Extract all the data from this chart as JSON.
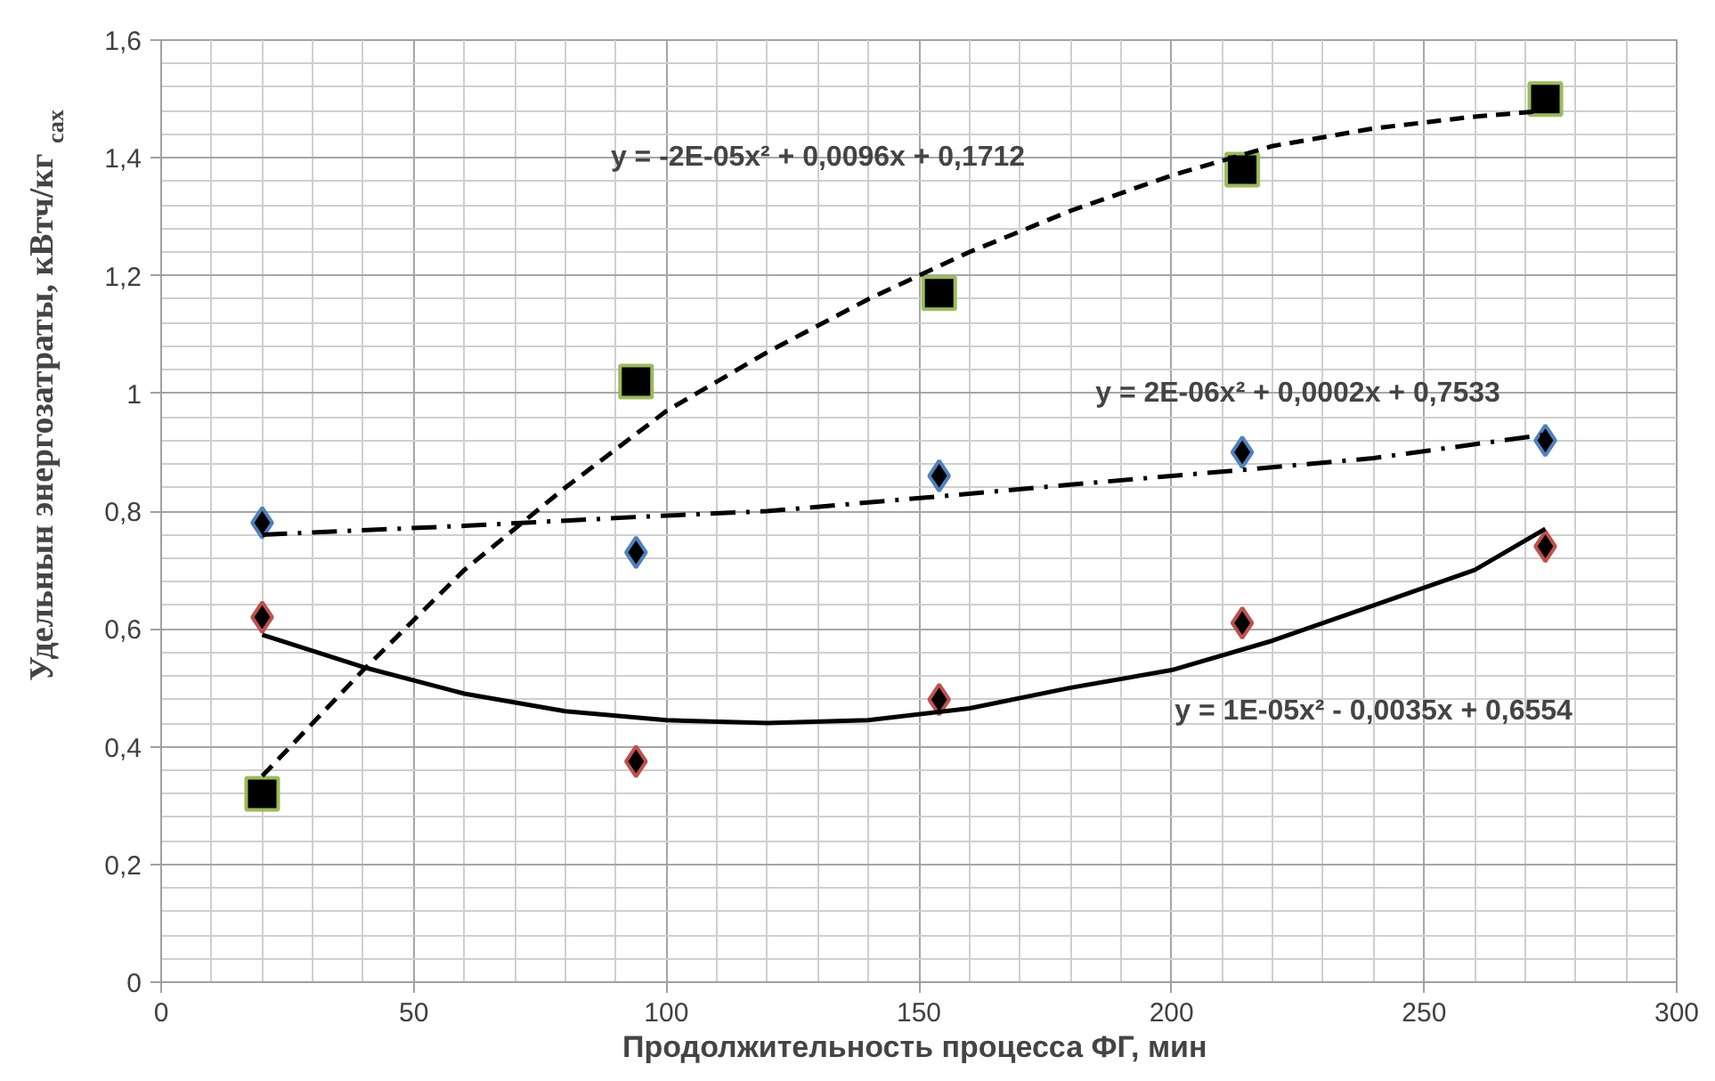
{
  "chart_data": {
    "type": "scatter",
    "xlabel": "Продолжительность  процесса ФГ, мин",
    "ylabel": "Удельнын энергозатраты,  кВтч/кг$_{сах}$",
    "x": [
      20,
      94,
      154,
      214,
      274
    ],
    "series": [
      {
        "marker": "square",
        "color": "#9bbb59",
        "values": [
          0.32,
          1.02,
          1.17,
          1.38,
          1.5
        ]
      },
      {
        "marker": "diamond",
        "color": "#4f81bd",
        "values": [
          0.78,
          0.73,
          0.86,
          0.9,
          0.92
        ]
      },
      {
        "marker": "diamond",
        "color": "#c0504d",
        "values": [
          0.62,
          0.375,
          0.48,
          0.61,
          0.74
        ]
      },
      {
        "type": "line",
        "line_style": "dashed",
        "color": "#000000",
        "x": [
          20,
          40,
          60,
          80,
          100,
          120,
          140,
          160,
          180,
          200,
          220,
          240,
          260,
          274
        ],
        "values": [
          0.35,
          0.53,
          0.7,
          0.84,
          0.97,
          1.07,
          1.16,
          1.24,
          1.31,
          1.37,
          1.42,
          1.45,
          1.47,
          1.48
        ]
      },
      {
        "type": "line",
        "line_style": "dashdot",
        "color": "#000000",
        "x": [
          20,
          60,
          94,
          120,
          154,
          180,
          214,
          240,
          274
        ],
        "values": [
          0.76,
          0.775,
          0.79,
          0.8,
          0.825,
          0.845,
          0.87,
          0.89,
          0.93
        ]
      },
      {
        "type": "line",
        "line_style": "solid",
        "color": "#000000",
        "x": [
          20,
          40,
          60,
          80,
          100,
          120,
          140,
          160,
          180,
          200,
          220,
          240,
          260,
          274
        ],
        "values": [
          0.59,
          0.535,
          0.49,
          0.46,
          0.445,
          0.44,
          0.445,
          0.465,
          0.5,
          0.53,
          0.58,
          0.64,
          0.7,
          0.77
        ]
      }
    ],
    "annotations": [
      "y = -2E-05x² + 0,0096x + 0,1712",
      "y = 2E-06x² + 0,0002x + 0,7533",
      "y = 1E-05x² - 0,0035x + 0,6554"
    ],
    "xlim": [
      0,
      300
    ],
    "ylim": [
      0,
      1.6
    ],
    "xticks": [
      0,
      50,
      100,
      150,
      200,
      250,
      300
    ],
    "yticks": [
      {
        "value": 0,
        "label": "0"
      },
      {
        "value": 0.2,
        "label": "0,2"
      },
      {
        "value": 0.4,
        "label": "0,4"
      },
      {
        "value": 0.6,
        "label": "0,6"
      },
      {
        "value": 0.8,
        "label": "0,8"
      },
      {
        "value": 1,
        "label": "1"
      },
      {
        "value": 1.2,
        "label": "1,2"
      },
      {
        "value": 1.4,
        "label": "1,4"
      },
      {
        "value": 1.6,
        "label": "1,6"
      }
    ],
    "grid": true
  }
}
